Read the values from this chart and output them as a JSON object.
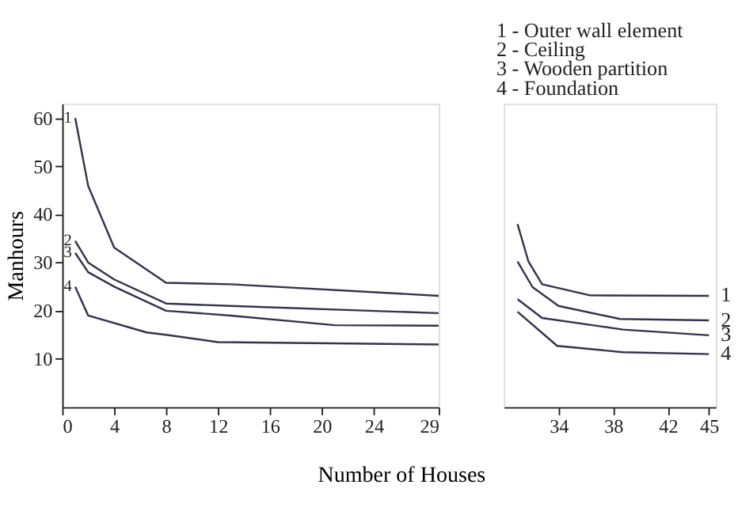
{
  "chart_data": [
    {
      "type": "line",
      "ylabel": "Manhours",
      "xlabel": "Number of Houses",
      "xlim": [
        0,
        29
      ],
      "xticks": [
        0,
        4,
        8,
        12,
        16,
        20,
        24,
        29
      ],
      "ylim": [
        0,
        63
      ],
      "yticks": [
        10,
        20,
        30,
        40,
        50,
        60
      ],
      "grid": false,
      "legend": false,
      "marker": "none",
      "line_style": "solid",
      "series": [
        {
          "name": "1",
          "color": "#33334d",
          "x": [
            1,
            2,
            4,
            8,
            13,
            29
          ],
          "values": [
            60,
            45.9,
            33.1,
            25.8,
            25.5,
            23.1
          ]
        },
        {
          "name": "2",
          "color": "#33334d",
          "x": [
            1,
            2,
            4,
            8,
            13,
            29
          ],
          "values": [
            34.5,
            30,
            26.5,
            21.5,
            21,
            19.5
          ]
        },
        {
          "name": "3",
          "color": "#33334d",
          "x": [
            1,
            2,
            4,
            8,
            13,
            21,
            29
          ],
          "values": [
            32,
            28,
            25,
            20,
            19,
            17,
            16.9
          ]
        },
        {
          "name": "4",
          "color": "#33334d",
          "x": [
            1,
            2,
            6.5,
            8,
            12,
            29
          ],
          "values": [
            25,
            19,
            15.5,
            15,
            13.5,
            13
          ]
        }
      ]
    },
    {
      "type": "line",
      "xlim": [
        30,
        45.5
      ],
      "xticks": [
        34,
        38,
        42,
        45
      ],
      "ylim": [
        0,
        63
      ],
      "tick_labels": "x",
      "grid": false,
      "legend": false,
      "marker": "none",
      "line_style": "solid",
      "annotations": [
        "1 - Outer wall element",
        "2 - Ceiling",
        "3 - Wooden partition",
        "4 - Foundation"
      ],
      "series": [
        {
          "name": "1",
          "color": "#33334d",
          "x": [
            31,
            31.8,
            32.8,
            36.3,
            45
          ],
          "values": [
            38,
            30.2,
            25.5,
            23.2,
            23.1
          ]
        },
        {
          "name": "2",
          "color": "#33334d",
          "x": [
            31,
            32.1,
            34,
            38.5,
            45
          ],
          "values": [
            30.2,
            24.9,
            21,
            18.3,
            18
          ]
        },
        {
          "name": "3",
          "color": "#33334d",
          "x": [
            31,
            32.8,
            38.7,
            45
          ],
          "values": [
            22.4,
            18.5,
            16.1,
            14.9
          ]
        },
        {
          "name": "4",
          "color": "#33334d",
          "x": [
            31,
            33.9,
            38.7,
            45
          ],
          "values": [
            19.8,
            12.7,
            11.4,
            11
          ]
        }
      ]
    }
  ]
}
